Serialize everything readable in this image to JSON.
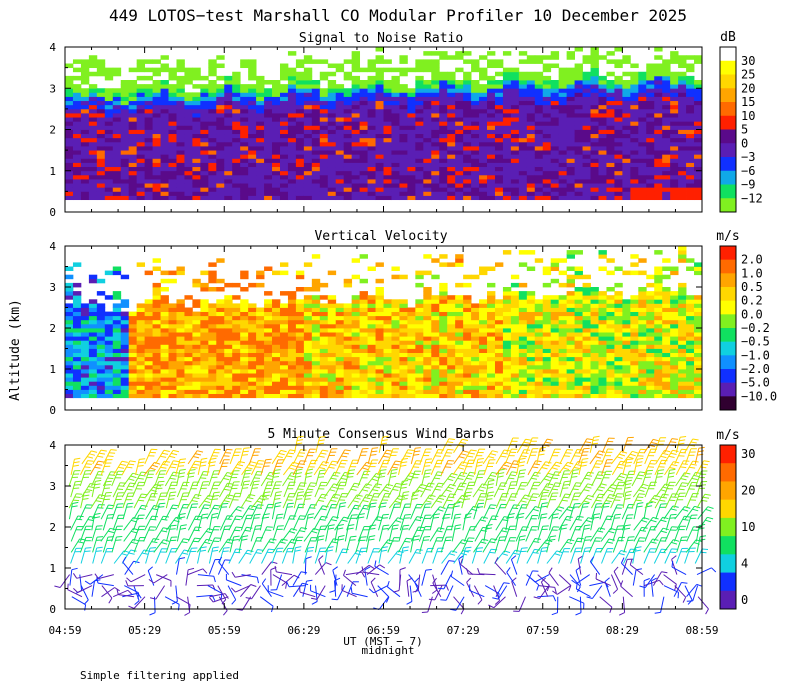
{
  "figure": {
    "title": "449 LOTOS−test Marshall CO Modular Profiler 10 December 2025",
    "ylabel": "Altitude (km)",
    "xlabel": "UT (MST − 7)",
    "x_sublabel": "midnight",
    "footnote": "Simple filtering applied",
    "x_ticks": [
      "04:59",
      "05:29",
      "05:59",
      "06:29",
      "06:59",
      "07:29",
      "07:59",
      "08:29",
      "08:59"
    ]
  },
  "chart_data": [
    {
      "type": "heatmap",
      "title": "Signal to Noise Ratio",
      "xlabel": "UT (MST − 7)",
      "ylabel": "Altitude (km)",
      "xlim": [
        "04:59",
        "08:59"
      ],
      "ylim": [
        0,
        4
      ],
      "y_ticks": [
        "0",
        "1",
        "2",
        "3",
        "4"
      ],
      "colorbar": {
        "unit": "dB",
        "labels": [
          "30",
          "25",
          "20",
          "15",
          "10",
          "5",
          "0",
          "−3",
          "−6",
          "−9",
          "−12"
        ],
        "colors": [
          "#ffffff",
          "#ffff00",
          "#ffd700",
          "#ffa500",
          "#ff6a00",
          "#ff2000",
          "#5a0a8a",
          "#5a1eb4",
          "#1030ff",
          "#10a8e8",
          "#10e060",
          "#80f020"
        ]
      }
    },
    {
      "type": "heatmap",
      "title": "Vertical Velocity",
      "xlabel": "UT (MST − 7)",
      "ylabel": "Altitude (km)",
      "xlim": [
        "04:59",
        "08:59"
      ],
      "ylim": [
        0,
        4
      ],
      "y_ticks": [
        "0",
        "1",
        "2",
        "3",
        "4"
      ],
      "colorbar": {
        "unit": "m/s",
        "labels": [
          "2.0",
          "1.0",
          "0.5",
          "0.2",
          "0.0",
          "−0.2",
          "−0.5",
          "−1.0",
          "−2.0",
          "−5.0",
          "−10.0"
        ],
        "colors": [
          "#ff2000",
          "#ff6a00",
          "#ffa500",
          "#ffd700",
          "#ffff00",
          "#80f020",
          "#10e060",
          "#10d0e0",
          "#1090ff",
          "#1030ff",
          "#5a1eb4",
          "#300030"
        ]
      }
    },
    {
      "type": "scatter",
      "subtype": "wind-barbs",
      "title": "5 Minute Consensus Wind Barbs",
      "xlabel": "UT (MST − 7)",
      "ylabel": "Altitude (km)",
      "xlim": [
        "04:59",
        "08:59"
      ],
      "ylim": [
        0,
        4
      ],
      "y_ticks": [
        "0",
        "1",
        "2",
        "3",
        "4"
      ],
      "colorbar": {
        "unit": "m/s",
        "labels": [
          "30",
          "20",
          "10",
          "4",
          "0"
        ],
        "colors": [
          "#ff2000",
          "#ff6a00",
          "#ffa500",
          "#ffd700",
          "#80f020",
          "#10e060",
          "#10d0e0",
          "#1030ff",
          "#5a1eb4"
        ]
      }
    }
  ]
}
